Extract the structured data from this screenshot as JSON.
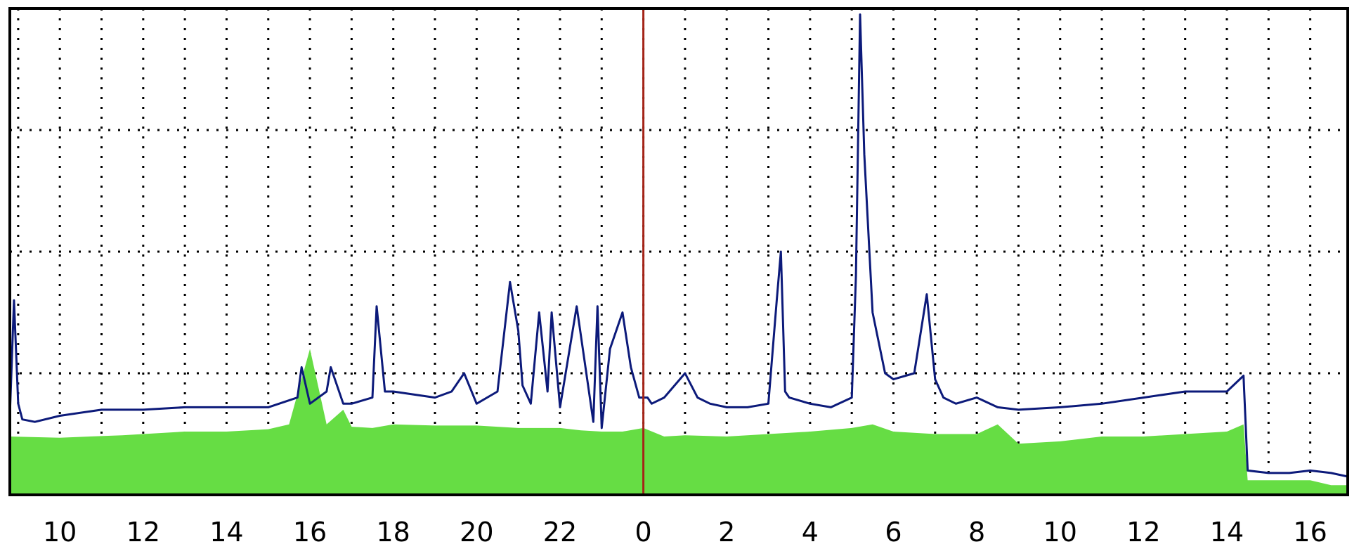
{
  "colors": {
    "background": "#ffffff",
    "grid": "#000000",
    "frame": "#000000",
    "incoming_fill": "#66dd44",
    "outgoing_line": "#0c1a7a",
    "day_marker": "#a42418"
  },
  "chart_data": {
    "type": "area",
    "title": "",
    "xlabel": "",
    "ylabel": "",
    "y_unit": "relative",
    "ylim": [
      0,
      4
    ],
    "y_gridlines": [
      1,
      2,
      3,
      4
    ],
    "grid": "dotted",
    "legend": "none",
    "x_axis": {
      "unit": "hour",
      "range_hours": [
        -15.2,
        16.9
      ],
      "tick_labels": [
        "10",
        "12",
        "14",
        "16",
        "18",
        "20",
        "22",
        "0",
        "2",
        "4",
        "6",
        "8",
        "10",
        "12",
        "14",
        "16"
      ],
      "tick_hours": [
        -14,
        -12,
        -10,
        -8,
        -6,
        -4,
        -2,
        0,
        2,
        4,
        6,
        8,
        10,
        12,
        14,
        16
      ],
      "minor_gridlines_hours": [
        -15,
        -13,
        -11,
        -9,
        -7,
        -5,
        -3,
        -1,
        1,
        3,
        5,
        7,
        9,
        11,
        13,
        15
      ],
      "day_boundary_hour": 0
    },
    "series": [
      {
        "type": "area",
        "x": [
          -15.2,
          -14.0,
          -12.5,
          -11.0,
          -10.0,
          -9.0,
          -8.5,
          -8.0,
          -7.6,
          -7.2,
          -7.0,
          -6.5,
          -6.0,
          -5.0,
          -4.0,
          -3.0,
          -2.0,
          -1.5,
          -1.0,
          -0.5,
          0.0,
          0.5,
          1.0,
          2.0,
          3.0,
          4.0,
          5.0,
          5.5,
          6.0,
          7.0,
          8.0,
          8.5,
          9.0,
          10.0,
          11.0,
          12.0,
          13.0,
          14.0,
          14.4,
          14.5,
          15.0,
          15.5,
          16.0,
          16.5,
          16.9
        ],
        "values": [
          0.48,
          0.47,
          0.49,
          0.52,
          0.52,
          0.54,
          0.58,
          1.2,
          0.58,
          0.7,
          0.56,
          0.55,
          0.58,
          0.57,
          0.57,
          0.55,
          0.55,
          0.53,
          0.52,
          0.52,
          0.55,
          0.48,
          0.49,
          0.48,
          0.5,
          0.52,
          0.55,
          0.58,
          0.52,
          0.5,
          0.5,
          0.58,
          0.42,
          0.44,
          0.48,
          0.48,
          0.5,
          0.52,
          0.58,
          0.12,
          0.12,
          0.12,
          0.12,
          0.08,
          0.08
        ]
      },
      {
        "type": "line",
        "x": [
          -15.2,
          -15.1,
          -15.0,
          -14.9,
          -14.6,
          -14.0,
          -13.0,
          -12.0,
          -11.0,
          -10.0,
          -9.0,
          -8.3,
          -8.2,
          -8.0,
          -7.6,
          -7.5,
          -7.2,
          -7.0,
          -6.5,
          -6.4,
          -6.2,
          -6.0,
          -5.0,
          -4.6,
          -4.3,
          -4.0,
          -3.5,
          -3.2,
          -3.0,
          -2.9,
          -2.7,
          -2.5,
          -2.3,
          -2.2,
          -2.0,
          -1.6,
          -1.2,
          -1.1,
          -1.0,
          -0.8,
          -0.5,
          -0.3,
          -0.1,
          0.1,
          0.2,
          0.5,
          1.0,
          1.3,
          1.6,
          2.0,
          2.5,
          3.0,
          3.2,
          3.3,
          3.4,
          3.5,
          4.0,
          4.5,
          5.0,
          5.1,
          5.2,
          5.3,
          5.5,
          5.8,
          6.0,
          6.5,
          6.8,
          7.0,
          7.2,
          7.5,
          8.0,
          8.5,
          9.0,
          10.0,
          11.0,
          12.0,
          13.0,
          14.0,
          14.4,
          14.5,
          15.0,
          15.5,
          16.0,
          16.5,
          16.9
        ],
        "values": [
          0.65,
          1.6,
          0.75,
          0.62,
          0.6,
          0.65,
          0.7,
          0.7,
          0.72,
          0.72,
          0.72,
          0.8,
          1.05,
          0.75,
          0.85,
          1.05,
          0.75,
          0.75,
          0.8,
          1.55,
          0.85,
          0.85,
          0.8,
          0.85,
          1.0,
          0.75,
          0.85,
          1.75,
          1.35,
          0.9,
          0.75,
          1.5,
          0.85,
          1.5,
          0.72,
          1.55,
          0.6,
          1.55,
          0.55,
          1.2,
          1.5,
          1.05,
          0.8,
          0.8,
          0.75,
          0.8,
          1.0,
          0.8,
          0.75,
          0.72,
          0.72,
          0.75,
          1.6,
          2.0,
          0.85,
          0.8,
          0.75,
          0.72,
          0.8,
          1.8,
          3.95,
          2.8,
          1.5,
          1.0,
          0.95,
          1.0,
          1.65,
          0.95,
          0.8,
          0.75,
          0.8,
          0.72,
          0.7,
          0.72,
          0.75,
          0.8,
          0.85,
          0.85,
          0.98,
          0.2,
          0.18,
          0.18,
          0.2,
          0.18,
          0.15
        ]
      }
    ]
  }
}
